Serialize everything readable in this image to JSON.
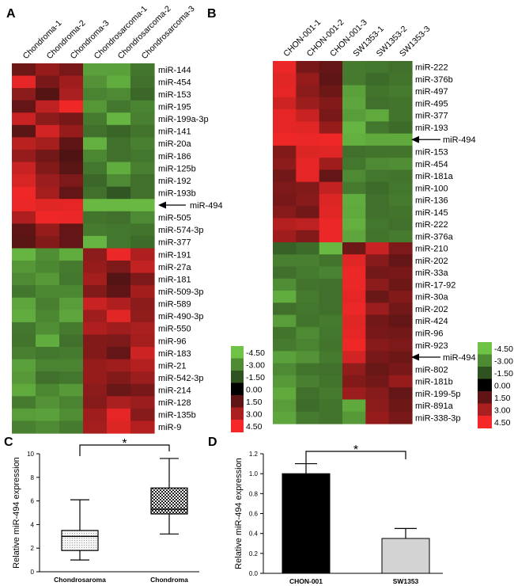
{
  "chart_data": [
    {
      "panel": "A",
      "type": "heatmap",
      "columns": [
        "Chondroma-1",
        "Chondroma-2",
        "Chondroma-3",
        "Chondrosarcoma-1",
        "Chondrosarcoma-2",
        "Chondrosarcoma-3"
      ],
      "rows": [
        "miR-144",
        "miR-454",
        "miR-153",
        "miR-195",
        "miR-199a-3p",
        "miR-141",
        "miR-20a",
        "miR-186",
        "miR-125b",
        "miR-192",
        "miR-193b",
        "miR-494",
        "miR-505",
        "miR-574-3p",
        "miR-377",
        "miR-191",
        "miR-27a",
        "miR-181",
        "miR-509-3p",
        "miR-589",
        "miR-490-3p",
        "miR-550",
        "miR-96",
        "miR-183",
        "miR-21",
        "miR-542-3p",
        "miR-214",
        "miR-128",
        "miR-135b",
        "miR-9"
      ],
      "highlight": "miR-494",
      "values": [
        [
          1.8,
          2.6,
          2.0,
          -3.6,
          -3.6,
          -2.5
        ],
        [
          4.2,
          2.0,
          2.8,
          -3.2,
          -3.9,
          -2.3
        ],
        [
          2.4,
          1.3,
          3.0,
          -2.8,
          -3.0,
          -2.1
        ],
        [
          1.6,
          3.4,
          4.4,
          -3.3,
          -2.5,
          -2.8
        ],
        [
          3.6,
          2.4,
          2.0,
          -2.6,
          -4.1,
          -2.7
        ],
        [
          1.4,
          3.8,
          2.6,
          -2.3,
          -2.0,
          -2.4
        ],
        [
          3.3,
          2.9,
          1.5,
          -4.0,
          -2.3,
          -2.7
        ],
        [
          2.6,
          1.9,
          1.2,
          -2.9,
          -2.3,
          -2.5
        ],
        [
          3.6,
          2.2,
          1.4,
          -2.5,
          -3.9,
          -2.7
        ],
        [
          3.9,
          2.7,
          2.1,
          -2.1,
          -3.0,
          -2.3
        ],
        [
          4.4,
          2.9,
          1.6,
          -2.3,
          -1.6,
          -2.3
        ],
        [
          4.3,
          4.1,
          4.2,
          -4.2,
          -4.2,
          -4.2
        ],
        [
          3.1,
          4.4,
          4.3,
          -2.4,
          -2.3,
          -3.0
        ],
        [
          1.5,
          2.6,
          1.6,
          -2.6,
          -2.5,
          -2.4
        ],
        [
          1.4,
          2.2,
          1.6,
          -4.1,
          -2.5,
          -2.2
        ],
        [
          -4.1,
          -3.1,
          -3.9,
          2.4,
          4.3,
          3.1
        ],
        [
          -3.3,
          -2.9,
          -2.6,
          2.6,
          2.1,
          3.5
        ],
        [
          -3.0,
          -3.4,
          -2.5,
          2.9,
          1.3,
          2.1
        ],
        [
          -2.5,
          -2.9,
          -2.9,
          2.2,
          1.5,
          2.9
        ],
        [
          -3.7,
          -2.7,
          -3.5,
          3.6,
          3.1,
          2.4
        ],
        [
          -3.9,
          -2.9,
          -3.7,
          2.8,
          4.1,
          2.5
        ],
        [
          -2.5,
          -3.1,
          -2.6,
          3.1,
          2.8,
          3.0
        ],
        [
          -2.4,
          -3.9,
          -2.3,
          2.2,
          2.1,
          2.9
        ],
        [
          -2.7,
          -2.5,
          -2.6,
          2.2,
          1.6,
          3.7
        ],
        [
          -3.6,
          -2.8,
          -2.8,
          2.6,
          2.8,
          3.2
        ],
        [
          -3.4,
          -2.3,
          -2.5,
          2.6,
          2.2,
          2.7
        ],
        [
          -3.8,
          -2.9,
          -3.4,
          2.4,
          1.7,
          2.0
        ],
        [
          -2.6,
          -3.2,
          -2.8,
          2.3,
          3.0,
          2.7
        ],
        [
          -3.5,
          -3.6,
          -3.1,
          2.8,
          4.2,
          2.3
        ],
        [
          -2.7,
          -3.0,
          -2.6,
          2.9,
          4.0,
          3.2
        ]
      ],
      "legend": [
        "-4.50",
        "-3.00",
        "-1.50",
        "0.00",
        "1.50",
        "3.00",
        "4.50"
      ]
    },
    {
      "panel": "B",
      "type": "heatmap",
      "columns": [
        "CHON-001-1",
        "CHON-001-2",
        "CHON-001-3",
        "SW1353-1",
        "SW1353-2",
        "SW1353-3"
      ],
      "rows": [
        "miR-222",
        "miR-376b",
        "miR-497",
        "miR-495",
        "miR-377",
        "miR-193",
        "miR-494",
        "miR-153",
        "miR-454",
        "miR-181a",
        "miR-100",
        "miR-136",
        "miR-145",
        "miR-222",
        "miR-376a",
        "miR-210",
        "miR-202",
        "miR-33a",
        "miR-17-92",
        "miR-30a",
        "miR-202",
        "miR-424",
        "miR-96",
        "miR-923",
        "miR-494",
        "miR-802",
        "miR-181b",
        "miR-199-5p",
        "miR-891a",
        "miR-338-3p"
      ],
      "highlight": "miR-494",
      "values": [
        [
          4.3,
          2.0,
          1.6,
          -2.6,
          -2.5,
          -2.3
        ],
        [
          4.1,
          2.6,
          1.5,
          -2.6,
          -2.2,
          -2.4
        ],
        [
          4.2,
          2.4,
          1.8,
          -3.6,
          -2.4,
          -2.6
        ],
        [
          3.7,
          2.7,
          2.2,
          -3.7,
          -2.3,
          -2.4
        ],
        [
          4.2,
          3.6,
          2.0,
          -3.5,
          -3.8,
          -2.4
        ],
        [
          4.2,
          4.1,
          2.6,
          -4.1,
          -2.5,
          -2.2
        ],
        [
          4.4,
          4.3,
          4.4,
          -4.0,
          -3.8,
          -3.8
        ],
        [
          2.2,
          4.0,
          4.1,
          -2.3,
          -2.4,
          -2.4
        ],
        [
          2.4,
          4.2,
          2.8,
          -2.5,
          -3.0,
          -3.1
        ],
        [
          1.9,
          4.2,
          1.6,
          -3.0,
          -2.5,
          -2.4
        ],
        [
          2.1,
          2.2,
          3.5,
          -2.6,
          -2.2,
          -2.5
        ],
        [
          2.0,
          2.3,
          4.0,
          -3.9,
          -2.3,
          -2.6
        ],
        [
          2.3,
          1.9,
          4.1,
          -3.8,
          -2.3,
          -2.4
        ],
        [
          3.2,
          3.4,
          4.3,
          -4.0,
          -2.5,
          -2.3
        ],
        [
          2.8,
          2.2,
          4.3,
          -3.7,
          -2.4,
          -2.6
        ],
        [
          -1.9,
          -2.2,
          -4.2,
          1.8,
          3.6,
          2.1
        ],
        [
          -2.7,
          -2.7,
          -2.4,
          4.1,
          2.3,
          1.6
        ],
        [
          -2.3,
          -2.6,
          -2.8,
          4.3,
          1.9,
          2.0
        ],
        [
          -3.1,
          -2.4,
          -2.3,
          4.3,
          2.4,
          1.8
        ],
        [
          -3.9,
          -2.6,
          -2.3,
          4.2,
          1.7,
          2.2
        ],
        [
          -2.3,
          -2.5,
          -2.3,
          4.3,
          2.7,
          1.9
        ],
        [
          -3.5,
          -2.4,
          -2.6,
          4.1,
          1.9,
          1.6
        ],
        [
          -2.4,
          -3.0,
          -2.5,
          4.2,
          2.0,
          1.9
        ],
        [
          -2.6,
          -2.8,
          -2.4,
          4.4,
          2.3,
          2.1
        ],
        [
          -3.6,
          -3.2,
          -2.6,
          3.8,
          2.0,
          1.8
        ],
        [
          -3.0,
          -2.4,
          -2.3,
          2.5,
          1.7,
          2.0
        ],
        [
          -3.4,
          -2.7,
          -2.4,
          2.2,
          1.9,
          2.6
        ],
        [
          -3.8,
          -2.3,
          -2.6,
          2.7,
          2.3,
          1.6
        ],
        [
          -3.5,
          -2.2,
          -2.4,
          -3.8,
          2.4,
          1.8
        ],
        [
          -3.7,
          -2.6,
          -2.4,
          -3.4,
          2.6,
          2.0
        ]
      ],
      "legend_left": [
        "-4.50",
        "-3.00",
        "-1.50",
        "0.00",
        "1.50",
        "3.00",
        "4.50"
      ],
      "legend_right": [
        "-4.50",
        "-3.00",
        "-1.50",
        "0.00",
        "1.50",
        "3.00",
        "4.50"
      ]
    },
    {
      "panel": "C",
      "type": "box",
      "ylabel": "Relative miR-494 expression",
      "ylim": [
        0,
        10
      ],
      "yticks": [
        "0",
        "2",
        "4",
        "6",
        "8",
        "10"
      ],
      "categories": [
        "Chondrosaroma",
        "Chondroma"
      ],
      "boxes": [
        {
          "min": 1.0,
          "q1": 1.8,
          "median": 3.0,
          "q3": 3.5,
          "max": 6.1
        },
        {
          "min": 3.2,
          "q1": 4.9,
          "median": 5.3,
          "q3": 7.1,
          "max": 9.6
        }
      ],
      "significance": "*"
    },
    {
      "panel": "D",
      "type": "bar",
      "ylabel": "Relative miR-494 expression",
      "ylim": [
        0,
        1.2
      ],
      "yticks": [
        "0.0",
        "0.2",
        "0.4",
        "0.6",
        "0.8",
        "1.0",
        "1.2"
      ],
      "categories": [
        "CHON-001",
        "SW1353"
      ],
      "values": [
        1.0,
        0.35
      ],
      "errors": [
        0.1,
        0.1
      ],
      "colors": [
        "#000000",
        "#d3d3d3"
      ],
      "significance": "*"
    }
  ]
}
